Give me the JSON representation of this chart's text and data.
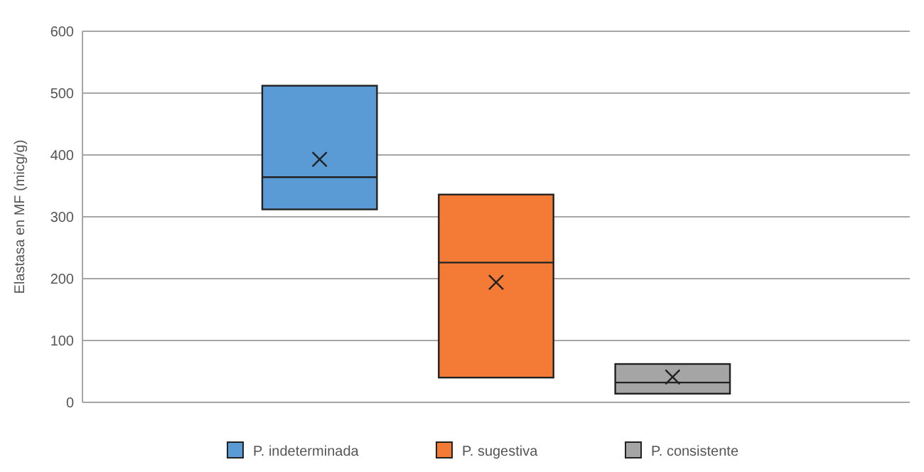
{
  "chart_data": {
    "type": "box",
    "ylabel": "Elastasa en MF (micg/g)",
    "categories": [
      null
    ],
    "ylim": [
      0,
      600
    ],
    "yticks": [
      0,
      100,
      200,
      300,
      400,
      500,
      600
    ],
    "grid": "y",
    "legend": "bottom",
    "marker": "cross",
    "series": [
      {
        "name": "P. indeterminada",
        "color": "#5b9bd5",
        "boxes": [
          {
            "low": 312,
            "q1": 312,
            "median": 364,
            "q3": 512,
            "high": 512,
            "mean": 393
          }
        ]
      },
      {
        "name": "P. sugestiva",
        "color": "#f47b35",
        "boxes": [
          {
            "low": 40,
            "q1": 40,
            "median": 226,
            "q3": 336,
            "high": 336,
            "mean": 194
          }
        ]
      },
      {
        "name": "P. consistente",
        "color": "#a5a5a5",
        "boxes": [
          {
            "low": 14,
            "q1": 14,
            "median": 32,
            "q3": 62,
            "high": 62,
            "mean": 41
          }
        ]
      }
    ]
  }
}
